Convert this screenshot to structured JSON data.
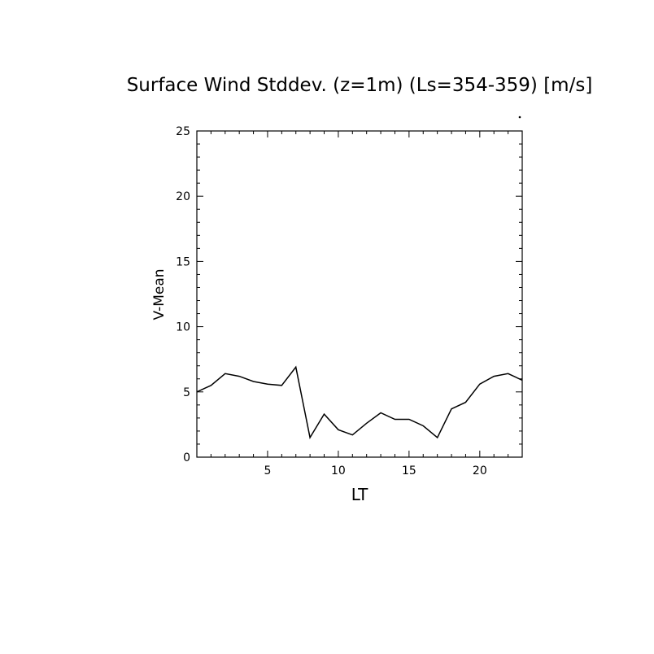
{
  "chart_data": {
    "type": "line",
    "title": "Surface Wind Stddev. (z=1m) (Ls=354-359) [m/s]",
    "xlabel": "LT",
    "ylabel": "V-Mean",
    "xlim": [
      0,
      23
    ],
    "ylim": [
      0,
      25
    ],
    "x_ticks": [
      5,
      10,
      15,
      20
    ],
    "y_ticks": [
      0,
      5,
      10,
      15,
      20,
      25
    ],
    "x_minor_step": 1,
    "y_minor_step": 1,
    "grid": false,
    "line_color": "#000000",
    "series": [
      {
        "x": [
          0,
          1,
          2,
          3,
          4,
          5,
          6,
          7,
          8,
          9,
          10,
          11,
          12,
          13,
          14,
          15,
          16,
          17,
          18,
          19,
          20,
          21,
          22,
          23
        ],
        "values": [
          5.0,
          5.5,
          6.4,
          6.2,
          5.8,
          5.6,
          5.5,
          6.9,
          1.5,
          3.3,
          2.1,
          1.7,
          2.6,
          3.4,
          2.9,
          2.9,
          2.4,
          1.5,
          3.7,
          4.2,
          5.6,
          6.2,
          6.4,
          5.9
        ]
      }
    ]
  }
}
